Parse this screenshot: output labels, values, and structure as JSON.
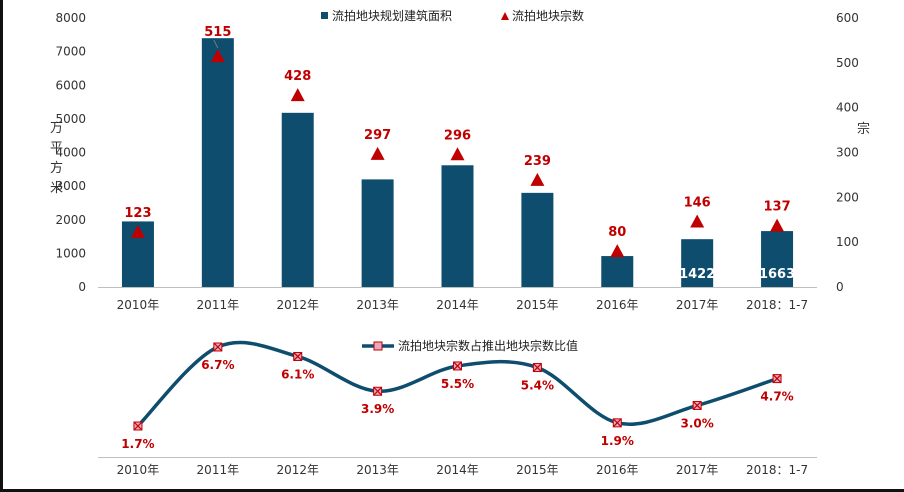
{
  "colors": {
    "bar": "#0e4d6e",
    "marker": "#c00000",
    "line": "#0e4d6e",
    "line_marker_fill": "#e8a8c0"
  },
  "chart_data": [
    {
      "type": "bar",
      "categories": [
        "2010年",
        "2011年",
        "2012年",
        "2013年",
        "2014年",
        "2015年",
        "2016年",
        "2017年",
        "2018：1-7"
      ],
      "series": [
        {
          "name": "流拍地块规划建筑面积",
          "axis": "left",
          "values": [
            1950,
            7400,
            5180,
            3200,
            3620,
            2800,
            920,
            1422,
            1663
          ],
          "data_labels": [
            "",
            "",
            "",
            "",
            "",
            "",
            "",
            "1422",
            "1663"
          ]
        },
        {
          "name": "流拍地块宗数",
          "axis": "right",
          "marker": "triangle",
          "values": [
            123,
            515,
            428,
            297,
            296,
            239,
            80,
            146,
            137
          ],
          "data_labels": [
            "123",
            "515",
            "428",
            "297",
            "296",
            "239",
            "80",
            "146",
            "137"
          ]
        }
      ],
      "ylabel": "万平方米",
      "y2label": "宗",
      "ylim": [
        0,
        8000
      ],
      "y2lim": [
        0,
        600
      ],
      "yticks": [
        "0",
        "1000",
        "2000",
        "3000",
        "4000",
        "5000",
        "6000",
        "7000",
        "8000"
      ],
      "y2ticks": [
        "0",
        "100",
        "200",
        "300",
        "400",
        "500",
        "600"
      ],
      "legend": "top-center",
      "grid": false
    },
    {
      "type": "line",
      "categories": [
        "2010年",
        "2011年",
        "2012年",
        "2013年",
        "2014年",
        "2015年",
        "2016年",
        "2017年",
        "2018：1-7"
      ],
      "series": [
        {
          "name": "流拍地块宗数占推出地块宗数比值",
          "values": [
            1.7,
            6.7,
            6.1,
            3.9,
            5.5,
            5.4,
            1.9,
            3.0,
            4.7
          ],
          "data_labels": [
            "1.7%",
            "6.7%",
            "6.1%",
            "3.9%",
            "5.5%",
            "5.4%",
            "1.9%",
            "3.0%",
            "4.7%"
          ]
        }
      ],
      "ylim": [
        0,
        8
      ],
      "legend": "top-center",
      "grid": false
    }
  ]
}
